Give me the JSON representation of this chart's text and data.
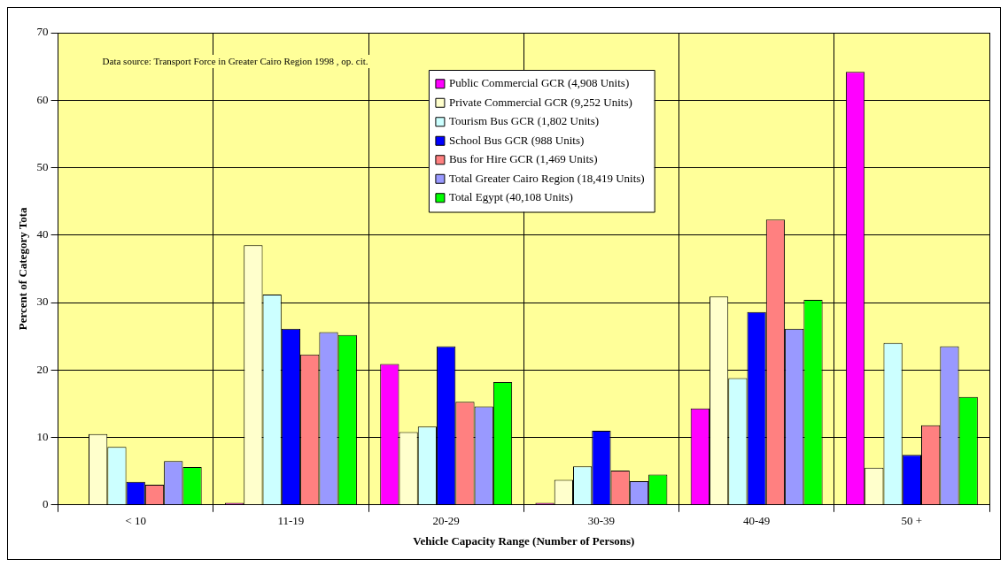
{
  "chart_data": {
    "type": "bar",
    "xlabel": "Vehicle Capacity Range (Number of Persons)",
    "ylabel": "Percent of Category Tota",
    "categories": [
      "< 10",
      "11-19",
      "20-29",
      "30-39",
      "40-49",
      "50 +"
    ],
    "series": [
      {
        "name": "Public Commercial GCR (4,908 Units)",
        "color": "#ff00ff",
        "values": [
          0,
          0.3,
          20.9,
          0.3,
          14.3,
          64.2
        ]
      },
      {
        "name": "Private Commercial GCR (9,252 Units)",
        "color": "#ffffcc",
        "values": [
          10.5,
          38.5,
          10.8,
          3.7,
          30.9,
          5.5
        ]
      },
      {
        "name": "Tourism Bus GCR (1,802 Units)",
        "color": "#ccffff",
        "values": [
          8.6,
          31.2,
          11.6,
          5.7,
          18.8,
          24.0
        ]
      },
      {
        "name": "School Bus GCR (988 Units)",
        "color": "#0000ff",
        "values": [
          3.4,
          26.1,
          23.5,
          11.0,
          28.6,
          7.4
        ]
      },
      {
        "name": "Bus for Hire GCR (1,469 Units)",
        "color": "#ff8080",
        "values": [
          3.0,
          22.3,
          15.3,
          5.1,
          42.3,
          11.8
        ]
      },
      {
        "name": "Total Greater Cairo Region (18,419 Units)",
        "color": "#9999ff",
        "values": [
          6.5,
          25.6,
          14.6,
          3.5,
          26.1,
          23.5
        ]
      },
      {
        "name": "Total Egypt (40,108 Units)",
        "color": "#00ff00",
        "values": [
          5.6,
          25.2,
          18.2,
          4.5,
          30.4,
          16.0
        ]
      }
    ],
    "ylim": [
      0,
      70
    ],
    "yticks": [
      0,
      10,
      20,
      30,
      40,
      50,
      60,
      70
    ],
    "grid": true,
    "legend": "top",
    "annotations": [
      "Data source: Transport Force in Greater Cairo Region 1998 , op. cit."
    ]
  }
}
